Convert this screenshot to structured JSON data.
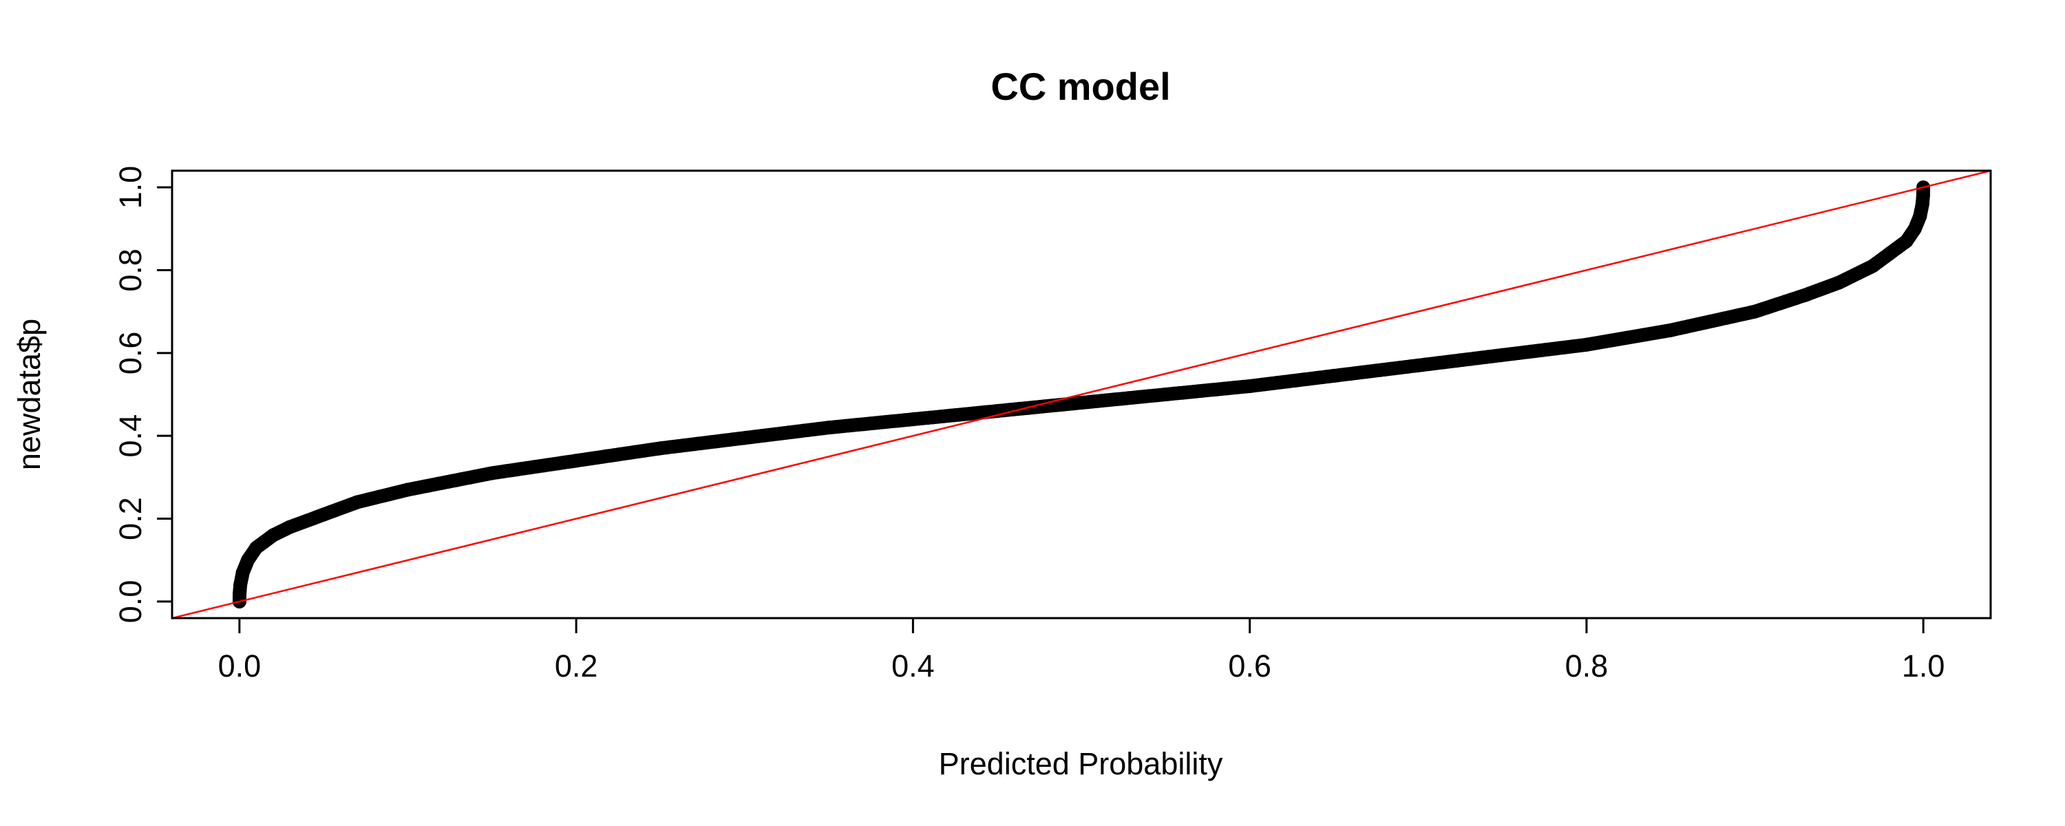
{
  "chart_data": {
    "type": "scatter",
    "title": "CC model",
    "xlabel": "Predicted Probability",
    "ylabel": "newdata$p",
    "xlim": [
      -0.04,
      1.04
    ],
    "ylim": [
      -0.04,
      1.04
    ],
    "x_ticks": [
      0.0,
      0.2,
      0.4,
      0.6,
      0.8,
      1.0
    ],
    "x_tick_labels": [
      "0.0",
      "0.2",
      "0.4",
      "0.6",
      "0.8",
      "1.0"
    ],
    "y_ticks": [
      0.0,
      0.2,
      0.4,
      0.6,
      0.8,
      1.0
    ],
    "y_tick_labels": [
      "0.0",
      "0.2",
      "0.4",
      "0.6",
      "0.8",
      "1.0"
    ],
    "grid": false,
    "series": [
      {
        "marker": "filled-circle",
        "color": "#000000",
        "x": [
          0.0,
          0.0001,
          0.0005,
          0.002,
          0.005,
          0.01,
          0.02,
          0.03,
          0.05,
          0.07,
          0.1,
          0.15,
          0.2,
          0.25,
          0.3,
          0.35,
          0.4,
          0.45,
          0.5,
          0.55,
          0.6,
          0.65,
          0.7,
          0.75,
          0.8,
          0.85,
          0.9,
          0.93,
          0.95,
          0.97,
          0.98,
          0.99,
          0.995,
          0.998,
          0.9995,
          0.9999,
          1.0
        ],
        "y": [
          0.0,
          0.02,
          0.04,
          0.07,
          0.1,
          0.13,
          0.16,
          0.18,
          0.21,
          0.24,
          0.27,
          0.31,
          0.34,
          0.37,
          0.395,
          0.42,
          0.44,
          0.46,
          0.48,
          0.5,
          0.52,
          0.545,
          0.57,
          0.595,
          0.62,
          0.655,
          0.7,
          0.74,
          0.77,
          0.81,
          0.84,
          0.87,
          0.9,
          0.93,
          0.96,
          0.98,
          1.0
        ]
      }
    ],
    "reference_line": {
      "type": "abline",
      "intercept": 0,
      "slope": 1,
      "color": "#ff0000"
    }
  }
}
